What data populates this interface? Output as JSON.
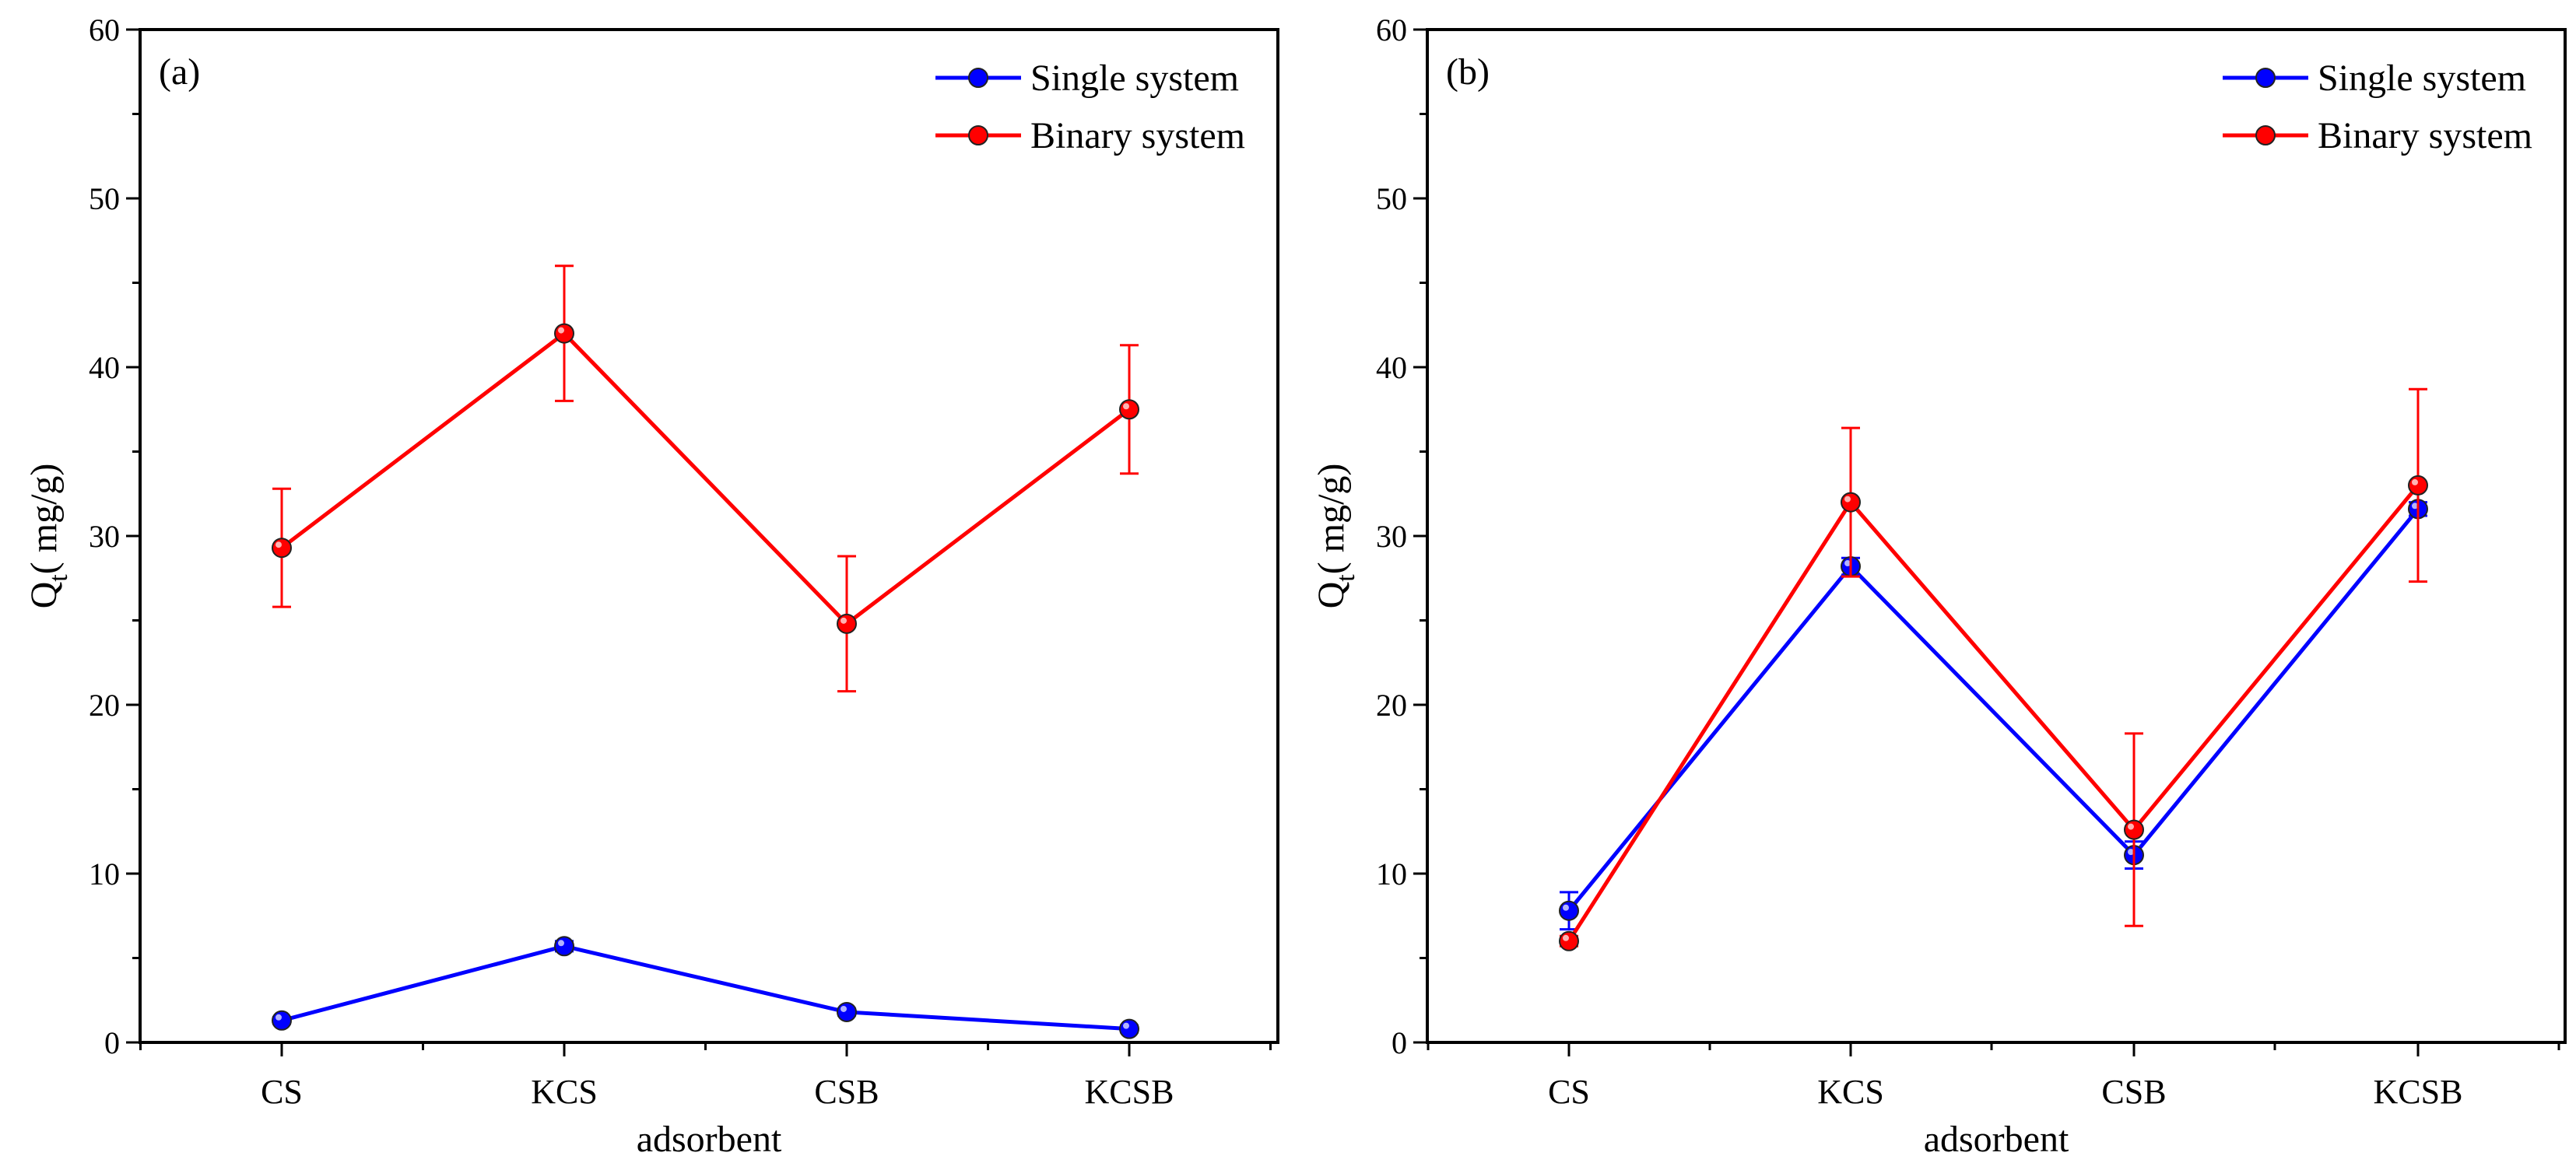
{
  "chart_data": [
    {
      "type": "line",
      "panel_label": "(a)",
      "categories": [
        "CS",
        "KCS",
        "CSB",
        "KCSB"
      ],
      "xlabel": "adsorbent",
      "ylabel": {
        "main": "Q",
        "sub": "t",
        "unit": "mg/g"
      },
      "ylim": [
        0,
        60
      ],
      "yticks": [
        0,
        10,
        20,
        30,
        40,
        50,
        60
      ],
      "legend_position": "top-right",
      "series": [
        {
          "name": "Single system",
          "color": "#0000ff",
          "values": [
            1.3,
            5.7,
            1.8,
            0.8
          ],
          "errors": [
            0.2,
            0.3,
            0.2,
            0.2
          ]
        },
        {
          "name": "Binary system",
          "color": "#ff0000",
          "values": [
            29.3,
            42.0,
            24.8,
            37.5
          ],
          "errors": [
            3.5,
            4.0,
            4.0,
            3.8
          ]
        }
      ]
    },
    {
      "type": "line",
      "panel_label": "(b)",
      "categories": [
        "CS",
        "KCS",
        "CSB",
        "KCSB"
      ],
      "xlabel": "adsorbent",
      "ylabel": {
        "main": "Q",
        "sub": "t",
        "unit": "mg/g"
      },
      "ylim": [
        0,
        60
      ],
      "yticks": [
        0,
        10,
        20,
        30,
        40,
        50,
        60
      ],
      "legend_position": "top-right",
      "series": [
        {
          "name": "Single system",
          "color": "#0000ff",
          "values": [
            7.8,
            28.2,
            11.1,
            31.6
          ],
          "errors": [
            1.1,
            0.5,
            0.8,
            0.4
          ]
        },
        {
          "name": "Binary system",
          "color": "#ff0000",
          "values": [
            6.0,
            32.0,
            12.6,
            33.0
          ],
          "errors": [
            0.3,
            4.4,
            5.7,
            5.7
          ]
        }
      ]
    }
  ]
}
